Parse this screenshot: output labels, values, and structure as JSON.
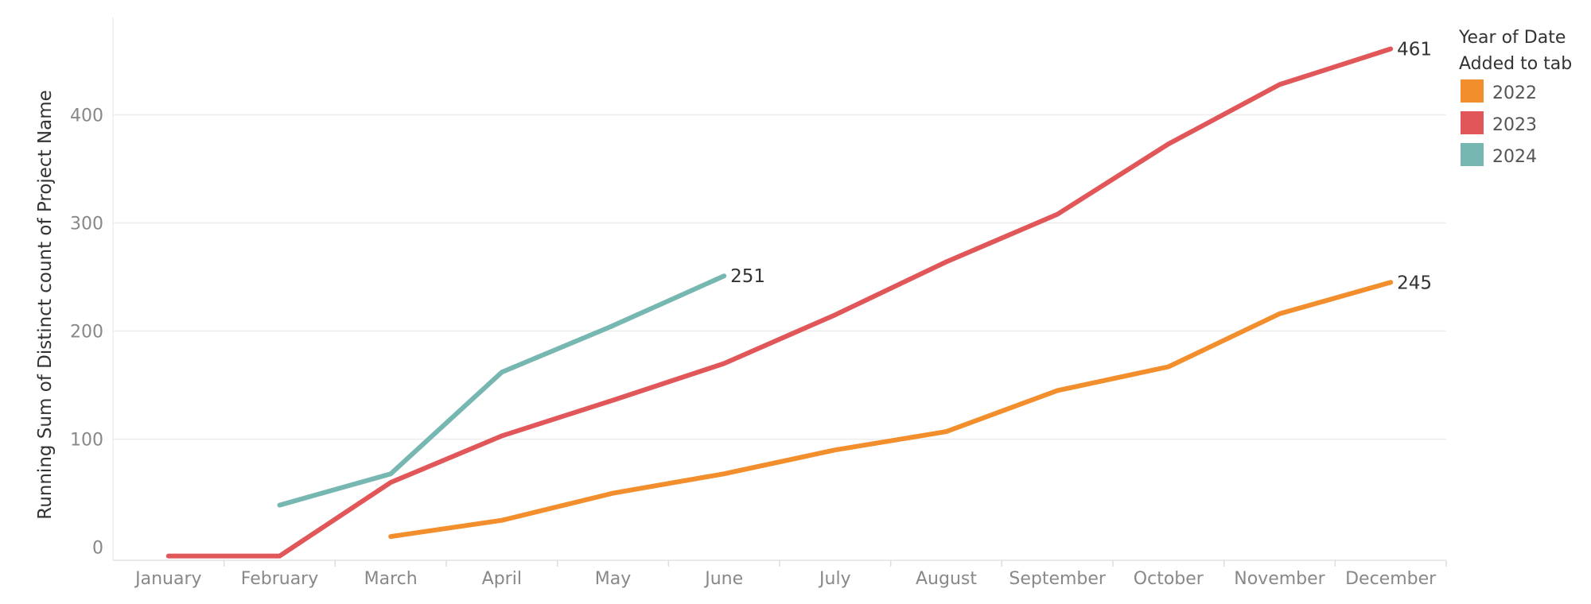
{
  "chart_data": {
    "type": "line",
    "ylabel": "Running Sum of Distinct count of Project Name",
    "xlabel": "",
    "categories": [
      "January",
      "February",
      "March",
      "April",
      "May",
      "June",
      "July",
      "August",
      "September",
      "October",
      "November",
      "December"
    ],
    "yticks": [
      0,
      100,
      200,
      300,
      400
    ],
    "ylim": [
      -12,
      490
    ],
    "grid": true,
    "legend": {
      "title_lines": [
        "Year of Date",
        "Added to tab"
      ],
      "placement": "right"
    },
    "series": [
      {
        "name": "2022",
        "color": "#f28e2b",
        "values": [
          null,
          null,
          10,
          25,
          50,
          68,
          90,
          107,
          145,
          167,
          216,
          245
        ],
        "end_label": "245"
      },
      {
        "name": "2023",
        "color": "#e15759",
        "values": [
          -8,
          -8,
          60,
          103,
          136,
          170,
          215,
          264,
          308,
          373,
          428,
          461
        ],
        "end_label": "461"
      },
      {
        "name": "2024",
        "color": "#76b7b2",
        "values": [
          null,
          39,
          68,
          162,
          205,
          251,
          null,
          null,
          null,
          null,
          null,
          null
        ],
        "end_label": "251"
      }
    ]
  }
}
